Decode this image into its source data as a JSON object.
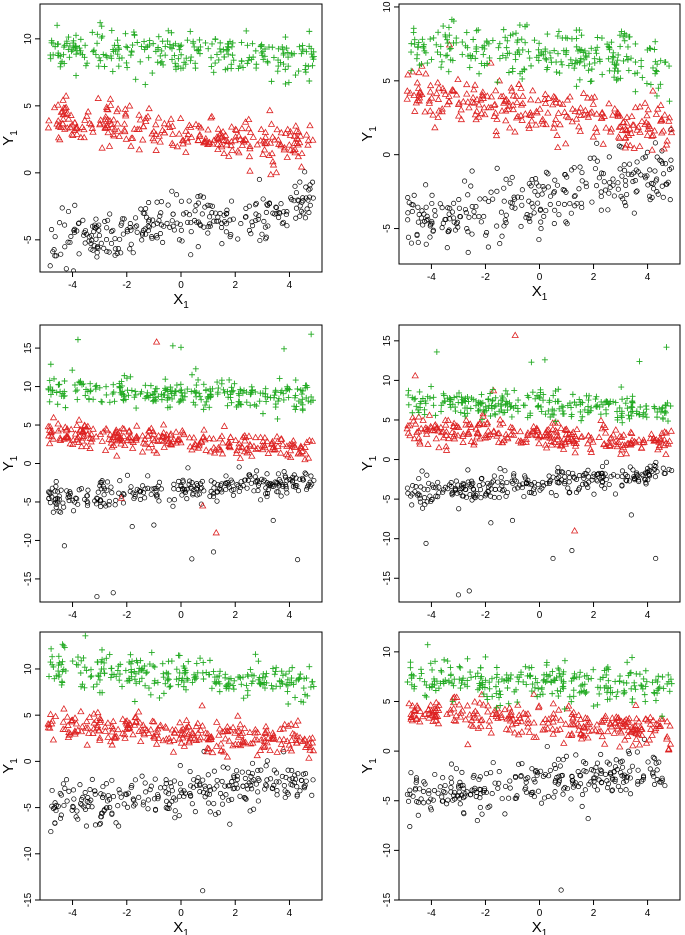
{
  "colors": {
    "black_series": "#000000",
    "red_series": "#dd2222",
    "green_series": "#22aa22"
  },
  "chart_data": [
    {
      "type": "scatter",
      "xlabel": "X",
      "xlabel_sub": "1",
      "ylabel": "Y",
      "ylabel_sub": "1",
      "xlim": [
        -5.2,
        5.2
      ],
      "ylim": [
        -7.4,
        12.6
      ],
      "xticks": [
        "-4",
        "-2",
        "0",
        "2",
        "4"
      ],
      "yticks": [
        "-5",
        "0",
        "5",
        "10"
      ],
      "series": [
        {
          "marker": "circle",
          "color": "#000000",
          "intercept": -3.8,
          "slope": 0.3,
          "sd": 1.1,
          "outliers": []
        },
        {
          "marker": "triangle",
          "color": "#dd2222",
          "intercept": 3.0,
          "slope": -0.25,
          "sd": 0.9,
          "outliers": []
        },
        {
          "marker": "plus",
          "color": "#22aa22",
          "intercept": 9.0,
          "slope": -0.1,
          "sd": 1.0,
          "outliers": []
        }
      ]
    },
    {
      "type": "scatter",
      "xlabel": "X",
      "xlabel_sub": "1",
      "ylabel": "Y",
      "ylabel_sub": "1",
      "xlim": [
        -5.2,
        5.2
      ],
      "ylim": [
        -7.4,
        10.2
      ],
      "xticks": [
        "-4",
        "-2",
        "0",
        "2",
        "4"
      ],
      "yticks": [
        "-5",
        "0",
        "5",
        "10"
      ],
      "series": [
        {
          "marker": "circle",
          "color": "#000000",
          "intercept": -3.0,
          "slope": 0.35,
          "sd": 1.2,
          "outliers": []
        },
        {
          "marker": "triangle",
          "color": "#dd2222",
          "intercept": 3.0,
          "slope": -0.25,
          "sd": 1.0,
          "outliers": []
        },
        {
          "marker": "plus",
          "color": "#22aa22",
          "intercept": 6.8,
          "slope": -0.1,
          "sd": 1.0,
          "outliers": []
        }
      ]
    },
    {
      "type": "scatter",
      "xlabel": "X",
      "xlabel_sub": "1",
      "ylabel": "Y",
      "ylabel_sub": "1",
      "xlim": [
        -5.2,
        5.2
      ],
      "ylim": [
        -18,
        18
      ],
      "xticks": [
        "-4",
        "-2",
        "0",
        "2",
        "4"
      ],
      "yticks": [
        "-15",
        "-10",
        "-5",
        "0",
        "5",
        "10",
        "15"
      ],
      "series": [
        {
          "marker": "circle",
          "color": "#000000",
          "intercept": -3.3,
          "slope": 0.25,
          "sd": 1.0,
          "outliers": [
            [
              -4.3,
              -10.7
            ],
            [
              -3.1,
              -17.3
            ],
            [
              -2.5,
              -16.8
            ],
            [
              -1.8,
              -8.2
            ],
            [
              -1.0,
              -8.0
            ],
            [
              0.4,
              -12.4
            ],
            [
              1.2,
              -11.5
            ],
            [
              3.4,
              -7.4
            ],
            [
              4.3,
              -12.5
            ]
          ]
        },
        {
          "marker": "triangle",
          "color": "#dd2222",
          "intercept": 3.0,
          "slope": -0.2,
          "sd": 0.9,
          "outliers": [
            [
              -0.9,
              15.8
            ],
            [
              1.3,
              -9.0
            ],
            [
              0.8,
              -5.5
            ],
            [
              -2.2,
              -4.5
            ]
          ]
        },
        {
          "marker": "plus",
          "color": "#22aa22",
          "intercept": 9.2,
          "slope": -0.1,
          "sd": 1.1,
          "outliers": [
            [
              -3.8,
              16.1
            ],
            [
              4.8,
              16.8
            ],
            [
              0.0,
              15.1
            ],
            [
              -0.3,
              15.3
            ],
            [
              -4.8,
              12.9
            ],
            [
              3.8,
              14.9
            ]
          ]
        }
      ]
    },
    {
      "type": "scatter",
      "xlabel": "X",
      "xlabel_sub": "1",
      "ylabel": "Y",
      "ylabel_sub": "1",
      "xlim": [
        -5.2,
        5.2
      ],
      "ylim": [
        -18,
        17
      ],
      "xticks": [
        "-4",
        "-2",
        "0",
        "2",
        "4"
      ],
      "yticks": [
        "-15",
        "-10",
        "-5",
        "0",
        "5",
        "10",
        "15"
      ],
      "series": [
        {
          "marker": "circle",
          "color": "#000000",
          "intercept": -3.0,
          "slope": 0.3,
          "sd": 1.0,
          "outliers": [
            [
              -4.2,
              -10.6
            ],
            [
              -3.0,
              -17.1
            ],
            [
              -2.6,
              -16.6
            ],
            [
              -1.8,
              -8.0
            ],
            [
              -1.0,
              -7.7
            ],
            [
              0.5,
              -12.5
            ],
            [
              1.2,
              -11.5
            ],
            [
              3.4,
              -7.0
            ],
            [
              4.3,
              -12.5
            ]
          ]
        },
        {
          "marker": "triangle",
          "color": "#dd2222",
          "intercept": 3.0,
          "slope": -0.2,
          "sd": 1.0,
          "outliers": [
            [
              -0.9,
              15.7
            ],
            [
              1.3,
              -9.0
            ],
            [
              -4.6,
              10.6
            ],
            [
              -1.7,
              8.7
            ]
          ]
        },
        {
          "marker": "plus",
          "color": "#22aa22",
          "intercept": 6.8,
          "slope": -0.1,
          "sd": 1.0,
          "outliers": [
            [
              -3.8,
              13.6
            ],
            [
              4.7,
              14.2
            ],
            [
              0.2,
              12.6
            ],
            [
              -0.3,
              12.3
            ],
            [
              3.7,
              12.4
            ]
          ]
        }
      ]
    },
    {
      "type": "scatter",
      "xlabel": "X",
      "xlabel_sub": "1",
      "ylabel": "Y",
      "ylabel_sub": "1",
      "xlim": [
        -5.2,
        5.2
      ],
      "ylim": [
        -15,
        14
      ],
      "xticks": [
        "-4",
        "-2",
        "0",
        "2",
        "4"
      ],
      "yticks": [
        "-15",
        "-10",
        "-5",
        "0",
        "5",
        "10"
      ],
      "series": [
        {
          "marker": "circle",
          "color": "#000000",
          "intercept": -3.5,
          "slope": 0.3,
          "sd": 1.3,
          "outliers": [
            [
              0.8,
              -14.0
            ],
            [
              -4.8,
              -7.6
            ],
            [
              -2.3,
              -7.0
            ],
            [
              1.8,
              -6.8
            ]
          ]
        },
        {
          "marker": "triangle",
          "color": "#dd2222",
          "intercept": 3.0,
          "slope": -0.2,
          "sd": 1.0,
          "outliers": []
        },
        {
          "marker": "plus",
          "color": "#22aa22",
          "intercept": 9.2,
          "slope": -0.15,
          "sd": 1.2,
          "outliers": []
        }
      ]
    },
    {
      "type": "scatter",
      "xlabel": "X",
      "xlabel_sub": "1",
      "ylabel": "Y",
      "ylabel_sub": "1",
      "xlim": [
        -5.2,
        5.2
      ],
      "ylim": [
        -15,
        12
      ],
      "xticks": [
        "-4",
        "-2",
        "0",
        "2",
        "4"
      ],
      "yticks": [
        "-15",
        "-10",
        "-5",
        "0",
        "5",
        "10"
      ],
      "series": [
        {
          "marker": "circle",
          "color": "#000000",
          "intercept": -3.2,
          "slope": 0.3,
          "sd": 1.3,
          "outliers": [
            [
              0.8,
              -14.0
            ],
            [
              -4.8,
              -7.6
            ],
            [
              -2.3,
              -7.0
            ],
            [
              1.8,
              -6.8
            ]
          ]
        },
        {
          "marker": "triangle",
          "color": "#dd2222",
          "intercept": 3.0,
          "slope": -0.2,
          "sd": 1.0,
          "outliers": []
        },
        {
          "marker": "plus",
          "color": "#22aa22",
          "intercept": 7.0,
          "slope": -0.1,
          "sd": 1.2,
          "outliers": []
        }
      ]
    }
  ]
}
